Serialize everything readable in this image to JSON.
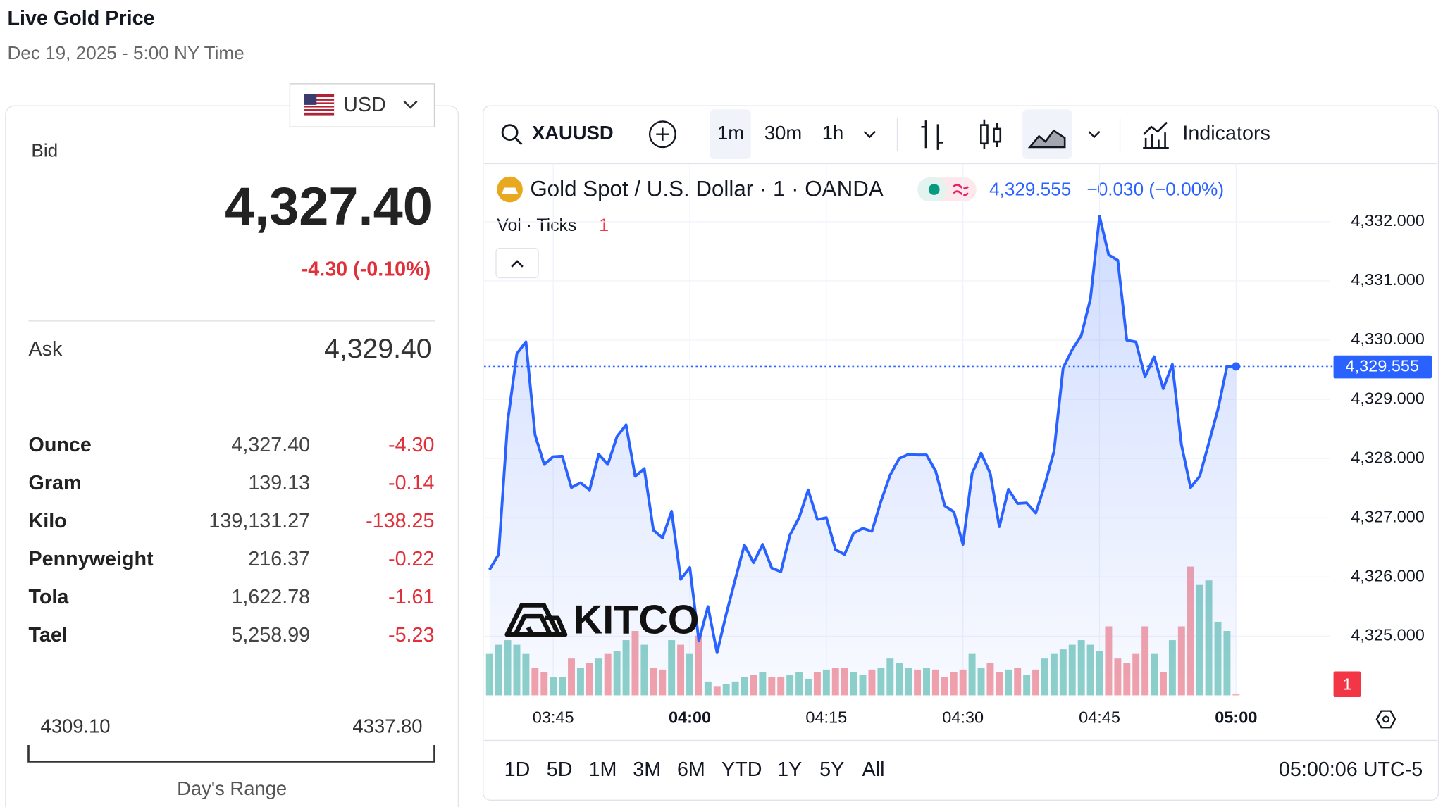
{
  "header": {
    "title": "Live Gold Price",
    "subtitle": "Dec 19, 2025 - 5:00 NY Time"
  },
  "currency": "USD",
  "quote": {
    "bid_label": "Bid",
    "bid": "4,327.40",
    "change": "-4.30 (-0.10%)",
    "ask_label": "Ask",
    "ask": "4,329.40"
  },
  "table": {
    "rows": [
      [
        "Ounce",
        "4,327.40",
        "-4.30"
      ],
      [
        "Gram",
        "139.13",
        "-0.14"
      ],
      [
        "Kilo",
        "139,131.27",
        "-138.25"
      ],
      [
        "Pennyweight",
        "216.37",
        "-0.22"
      ],
      [
        "Tola",
        "1,622.78",
        "-1.61"
      ],
      [
        "Tael",
        "5,258.99",
        "-5.23"
      ]
    ]
  },
  "range": {
    "low": "4309.10",
    "high": "4337.80",
    "label": "Day's Range"
  },
  "toolbar": {
    "symbol": "XAUUSD",
    "intervals": [
      "1m",
      "30m",
      "1h"
    ],
    "indicators": "Indicators"
  },
  "legend": {
    "title": "Gold Spot / U.S. Dollar · 1 · OANDA",
    "price": "4,329.555",
    "change": "−0.030 (−0.00%)",
    "volume": "Vol · Ticks"
  },
  "watermark": "KITCO",
  "ranges": [
    "1D",
    "5D",
    "1M",
    "3M",
    "6M",
    "YTD",
    "1Y",
    "5Y",
    "All"
  ],
  "clock": "05:00:06 UTC-5",
  "chart_data": {
    "type": "line",
    "x": [
      "03:38",
      "03:39",
      "03:40",
      "03:41",
      "03:42",
      "03:43",
      "03:44",
      "03:45",
      "03:46",
      "03:47",
      "03:48",
      "03:49",
      "03:50",
      "03:51",
      "03:52",
      "03:53",
      "03:54",
      "03:55",
      "03:56",
      "03:57",
      "03:58",
      "03:59",
      "04:00",
      "04:01",
      "04:02",
      "04:03",
      "04:04",
      "04:05",
      "04:06",
      "04:07",
      "04:08",
      "04:09",
      "04:10",
      "04:11",
      "04:12",
      "04:13",
      "04:14",
      "04:15",
      "04:16",
      "04:17",
      "04:18",
      "04:19",
      "04:20",
      "04:21",
      "04:22",
      "04:23",
      "04:24",
      "04:25",
      "04:26",
      "04:27",
      "04:28",
      "04:29",
      "04:30",
      "04:31",
      "04:32",
      "04:33",
      "04:34",
      "04:35",
      "04:36",
      "04:37",
      "04:38",
      "04:39",
      "04:40",
      "04:41",
      "04:42",
      "04:43",
      "04:44",
      "04:45",
      "04:46",
      "04:47",
      "04:48",
      "04:49",
      "04:50",
      "04:51",
      "04:52",
      "04:53",
      "04:54",
      "04:55",
      "04:56",
      "04:57",
      "04:58",
      "04:59",
      "05:00"
    ],
    "series": [
      {
        "name": "XAUUSD",
        "color": "#2962ff",
        "values": [
          4326.12,
          4326.38,
          4328.63,
          4329.77,
          4329.97,
          4328.4,
          4327.9,
          4328.03,
          4328.04,
          4327.51,
          4327.59,
          4327.47,
          4328.07,
          4327.9,
          4328.37,
          4328.57,
          4327.7,
          4327.83,
          4326.79,
          4326.66,
          4327.11,
          4325.96,
          4326.16,
          4324.92,
          4325.5,
          4324.72,
          4325.37,
          4325.96,
          4326.54,
          4326.24,
          4326.55,
          4326.15,
          4326.09,
          4326.71,
          4327.0,
          4327.47,
          4326.97,
          4327.0,
          4326.46,
          4326.38,
          4326.74,
          4326.82,
          4326.77,
          4327.28,
          4327.72,
          4328.0,
          4328.07,
          4328.06,
          4328.06,
          4327.79,
          4327.2,
          4327.1,
          4326.55,
          4327.75,
          4328.09,
          4327.75,
          4326.85,
          4327.48,
          4327.24,
          4327.25,
          4327.08,
          4327.56,
          4328.12,
          4329.53,
          4329.84,
          4330.08,
          4330.7,
          4332.09,
          4331.44,
          4331.35,
          4330.0,
          4329.97,
          4329.38,
          4329.72,
          4329.18,
          4329.59,
          4328.23,
          4327.51,
          4327.7,
          4328.26,
          4328.83,
          4329.56,
          4329.555
        ]
      }
    ],
    "volume": {
      "up_color": "#8fd2c8",
      "down_color": "#f5a3a9",
      "values": [
        45,
        55,
        60,
        55,
        45,
        30,
        25,
        20,
        20,
        40,
        30,
        35,
        40,
        45,
        48,
        60,
        70,
        55,
        30,
        28,
        60,
        55,
        45,
        65,
        15,
        10,
        12,
        15,
        20,
        22,
        25,
        20,
        20,
        22,
        25,
        18,
        25,
        28,
        30,
        30,
        25,
        22,
        28,
        30,
        40,
        35,
        30,
        28,
        30,
        28,
        20,
        25,
        28,
        45,
        30,
        35,
        25,
        28,
        30,
        22,
        28,
        40,
        45,
        50,
        55,
        60,
        55,
        48,
        75,
        40,
        35,
        45,
        75,
        45,
        25,
        60,
        75,
        140,
        120,
        125,
        80,
        70,
        1
      ]
    },
    "last_label": "4,329.555",
    "xlim": [
      "03:37",
      "05:11"
    ],
    "xticks": [
      "03:45",
      "04:00",
      "04:15",
      "04:30",
      "04:45",
      "05:00"
    ],
    "ylim": [
      4324,
      4332.98
    ],
    "yticks": [
      {
        "value": 4325,
        "label": "4,325.000"
      },
      {
        "value": 4326,
        "label": "4,326.000"
      },
      {
        "value": 4327,
        "label": "4,327.000"
      },
      {
        "value": 4328,
        "label": "4,328.000"
      },
      {
        "value": 4329,
        "label": "4,329.000"
      },
      {
        "value": 4330,
        "label": "4,330.000"
      },
      {
        "value": 4331,
        "label": "4,331.000"
      },
      {
        "value": 4332,
        "label": "4,332.000"
      }
    ],
    "grid": true
  }
}
